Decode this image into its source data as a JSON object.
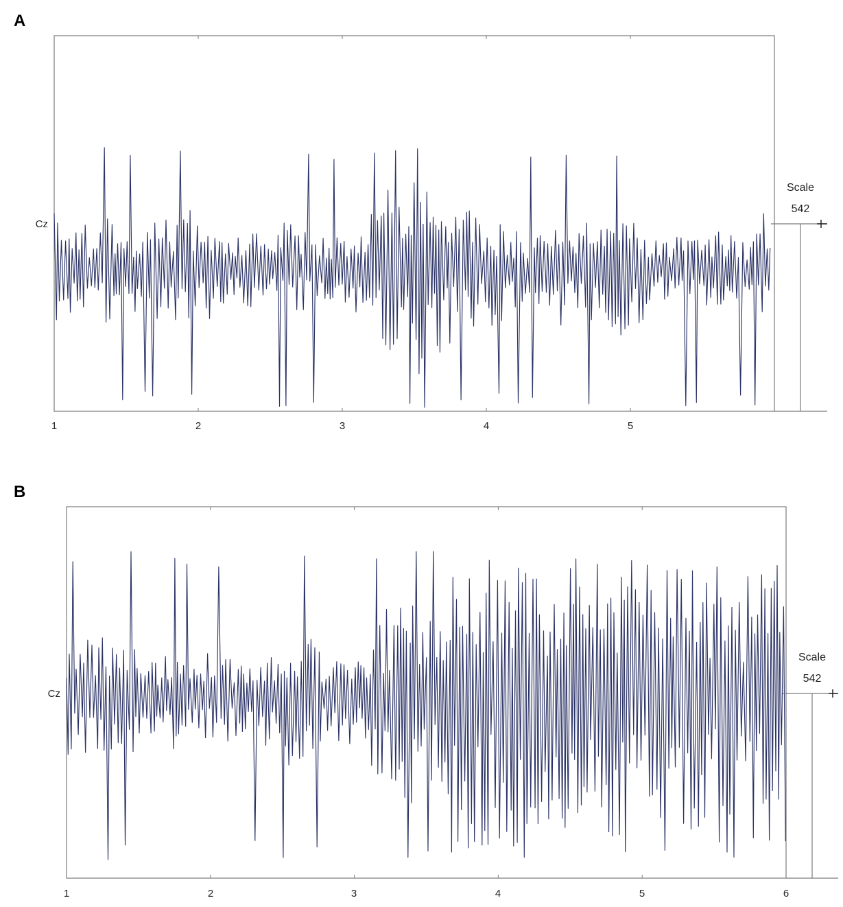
{
  "colors": {
    "trace": "#2b3366",
    "axis": "#7a7a7a"
  },
  "chart_data": [
    {
      "type": "line",
      "panel_label": "A",
      "channel_label": "Cz",
      "x_ticks": [
        "1",
        "2",
        "3",
        "4",
        "5"
      ],
      "xlim": [
        1,
        6
      ],
      "scale_label": "Scale",
      "scale_value": "542",
      "series": [
        {
          "kind": "eeg_trace",
          "seed": 7,
          "x_range": [
            1.0,
            5.98
          ]
        }
      ]
    },
    {
      "type": "line",
      "panel_label": "B",
      "channel_label": "Cz",
      "x_ticks": [
        "1",
        "2",
        "3",
        "4",
        "5",
        "6"
      ],
      "xlim": [
        1,
        6
      ],
      "scale_label": "Scale",
      "scale_value": "542",
      "series": [
        {
          "kind": "eeg_trace",
          "seed": 19,
          "x_range": [
            1.0,
            6.0
          ]
        }
      ]
    }
  ]
}
